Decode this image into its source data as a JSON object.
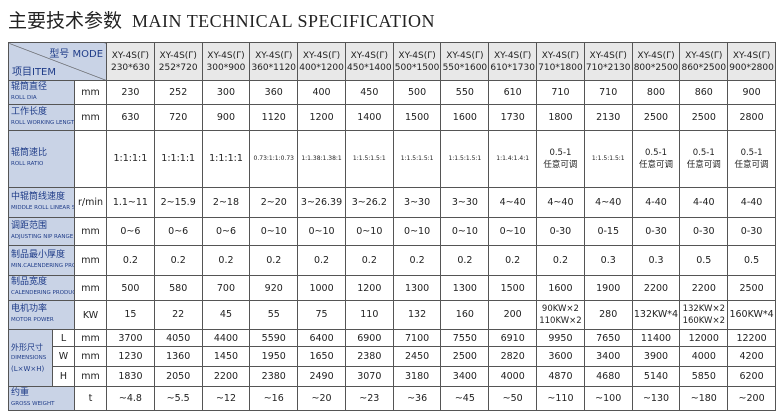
{
  "header": {
    "title_cn": "主要技术参数",
    "title_en": "MAIN TECHNICAL SPECIFICATION"
  },
  "table": {
    "corner_top": "型号 MODE",
    "corner_bottom": "项目ITEM",
    "models": [
      {
        "name": "XY-4S(Γ)",
        "size": "230*630"
      },
      {
        "name": "XY-4S(Γ)",
        "size": "252*720"
      },
      {
        "name": "XY-4S(Γ)",
        "size": "300*900"
      },
      {
        "name": "XY-4S(Γ)",
        "size": "360*1120"
      },
      {
        "name": "XY-4S(Γ)",
        "size": "400*1200"
      },
      {
        "name": "XY-4S(Γ)",
        "size": "450*1400"
      },
      {
        "name": "XY-4S(Γ)",
        "size": "500*1500"
      },
      {
        "name": "XY-4S(Γ)",
        "size": "550*1600"
      },
      {
        "name": "XY-4S(Γ)",
        "size": "610*1730"
      },
      {
        "name": "XY-4S(Γ)",
        "size": "710*1800"
      },
      {
        "name": "XY-4S(Γ)",
        "size": "710*2130"
      },
      {
        "name": "XY-4S(Γ)",
        "size": "800*2500"
      },
      {
        "name": "XY-4S(Γ)",
        "size": "860*2500"
      },
      {
        "name": "XY-4S(Γ)",
        "size": "900*2800"
      }
    ],
    "rows": [
      {
        "label_cn": "辊筒直径",
        "label_en": "ROLL DIA",
        "unit": "mm",
        "values": [
          "230",
          "252",
          "300",
          "360",
          "400",
          "450",
          "500",
          "550",
          "610",
          "710",
          "710",
          "800",
          "860",
          "900"
        ]
      },
      {
        "label_cn": "工作长度",
        "label_en": "ROLL WORKING LENGTH",
        "unit": "mm",
        "values": [
          "630",
          "720",
          "900",
          "1120",
          "1200",
          "1400",
          "1500",
          "1600",
          "1730",
          "1800",
          "2130",
          "2500",
          "2500",
          "2800"
        ]
      },
      {
        "label_cn": "辊筒速比",
        "label_en": "ROLL RATIO",
        "values": [
          [
            "1:1:1:1"
          ],
          [
            "1:1:1:1"
          ],
          [
            "1:1:1:1"
          ],
          [
            "0.73:1:1:0.73"
          ],
          [
            "1:1.38:1.38:1"
          ],
          [
            "1:1.5:1.5:1"
          ],
          [
            "1:1.5:1.5:1"
          ],
          [
            "1:1.5:1.5:1"
          ],
          [
            "1:1.4:1.4:1"
          ],
          [
            "0.5-1",
            "任意可调"
          ],
          [
            "1:1.5:1.5:1"
          ],
          [
            "0.5-1",
            "任意可调"
          ],
          [
            "0.5-1",
            "任意可调"
          ],
          [
            "0.5-1",
            "任意可调"
          ]
        ]
      },
      {
        "label_cn": "中辊筒线速度",
        "label_en": "MIDDLE ROLL LINEAR SPEED",
        "unit": "r/min",
        "values": [
          "1.1~11",
          "2~15.9",
          "2~18",
          "2~20",
          "3~26.39",
          "3~26.2",
          "3~30",
          "3~30",
          "4~40",
          "4~40",
          "4~40",
          "4-40",
          "4-40",
          "4-40"
        ]
      },
      {
        "label_cn": "调距范围",
        "label_en": "ADJUSTING NIP RANGE",
        "unit": "mm",
        "values": [
          "0~6",
          "0~6",
          "0~6",
          "0~10",
          "0~10",
          "0~10",
          "0~10",
          "0~10",
          "0~10",
          "0-30",
          "0-15",
          "0-30",
          "0-30",
          "0-30"
        ]
      },
      {
        "label_cn": "制品最小厚度",
        "label_en": "MIN.CALENDERING PRODUCT THICKNESS",
        "unit": "mm",
        "values": [
          "0.2",
          "0.2",
          "0.2",
          "0.2",
          "0.2",
          "0.2",
          "0.2",
          "0.2",
          "0.2",
          "0.2",
          "0.3",
          "0.3",
          "0.5",
          "0.5"
        ]
      },
      {
        "label_cn": "制品宽度",
        "label_en": "CALENDERING PRODUCT WIDTH",
        "unit": "mm",
        "values": [
          "500",
          "580",
          "700",
          "920",
          "1000",
          "1200",
          "1300",
          "1300",
          "1500",
          "1600",
          "1900",
          "2200",
          "2200",
          "2500"
        ]
      },
      {
        "label_cn": "电机功率",
        "label_en": "MOTOR POWER",
        "unit": "KW",
        "values": [
          [
            "15"
          ],
          [
            "22"
          ],
          [
            "45"
          ],
          [
            "55"
          ],
          [
            "75"
          ],
          [
            "110"
          ],
          [
            "132"
          ],
          [
            "160"
          ],
          [
            "200"
          ],
          [
            "90KW×2",
            "110KW×2"
          ],
          [
            "280"
          ],
          [
            "132KW*4"
          ],
          [
            "132KW×2",
            "160KW×2"
          ],
          [
            "160KW*4"
          ]
        ]
      },
      {
        "label_cn": "外形尺寸",
        "label_en": "DIMENSIONS",
        "label_note": "(L×W×H)",
        "subrows": [
          {
            "axis": "L",
            "unit": "mm",
            "values": [
              "3700",
              "4050",
              "4400",
              "5590",
              "6400",
              "6900",
              "7100",
              "7550",
              "6910",
              "9950",
              "7650",
              "11400",
              "12000",
              "12200"
            ]
          },
          {
            "axis": "W",
            "unit": "mm",
            "values": [
              "1230",
              "1360",
              "1450",
              "1950",
              "1650",
              "2380",
              "2450",
              "2500",
              "2820",
              "3600",
              "3400",
              "3900",
              "4000",
              "4200"
            ]
          },
          {
            "axis": "H",
            "unit": "mm",
            "values": [
              "1830",
              "2050",
              "2200",
              "2380",
              "2490",
              "3070",
              "3180",
              "3400",
              "4000",
              "4870",
              "4680",
              "5140",
              "5850",
              "6200"
            ]
          }
        ]
      },
      {
        "label_cn": "约重",
        "label_en": "GROSS WEIGHT",
        "unit": "t",
        "values": [
          "~4.8",
          "~5.5",
          "~12",
          "~16",
          "~20",
          "~23",
          "~36",
          "~45",
          "~50",
          "~110",
          "~100",
          "~130",
          "~180",
          "~200"
        ]
      }
    ]
  }
}
